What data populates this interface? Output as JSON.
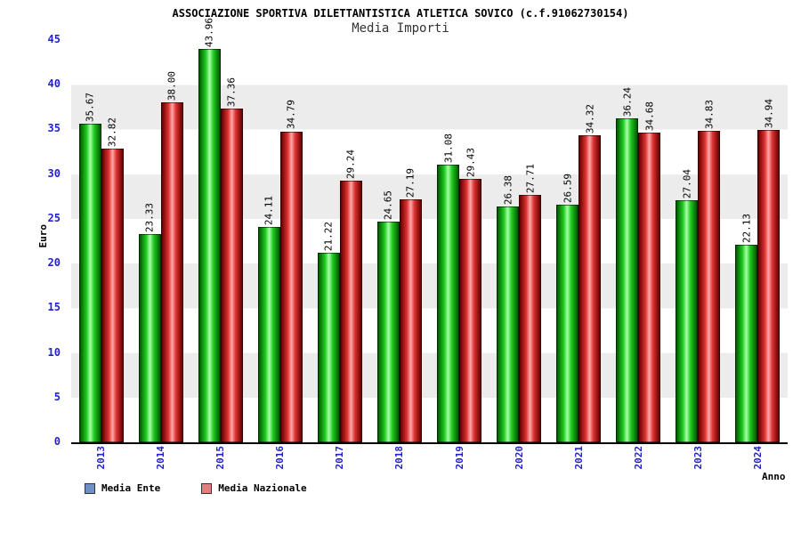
{
  "header": {
    "title": "ASSOCIAZIONE SPORTIVA DILETTANTISTICA ATLETICA SOVICO (c.f.91062730154)",
    "subtitle": "Media Importi"
  },
  "colors": {
    "axis_text": "#2222cc",
    "band_gray": "#ececec",
    "background": "#ffffff"
  },
  "chart_data": {
    "type": "bar",
    "title": "ASSOCIAZIONE SPORTIVA DILETTANTISTICA ATLETICA SOVICO (c.f.91062730154)",
    "subtitle": "Media Importi",
    "xlabel": "Anno",
    "ylabel": "Euro",
    "ylim": [
      0,
      45
    ],
    "ytick_step": 5,
    "yticks": [
      "0",
      "5",
      "10",
      "15",
      "20",
      "25",
      "30",
      "35",
      "40",
      "45"
    ],
    "grid": "alternating-bands",
    "legend_position": "bottom-left",
    "categories": [
      "2013",
      "2014",
      "2015",
      "2016",
      "2017",
      "2018",
      "2019",
      "2020",
      "2021",
      "2022",
      "2023",
      "2024"
    ],
    "series": [
      {
        "name": "Media Ente",
        "legend_swatch": "#6f8fc9",
        "gradient": [
          "#005a00",
          "#22cc22",
          "#aaffaa"
        ],
        "values": [
          35.67,
          23.33,
          43.96,
          24.11,
          21.22,
          24.65,
          31.08,
          26.38,
          26.59,
          36.24,
          27.04,
          22.13
        ],
        "labels": [
          "35.67",
          "23.33",
          "43.96",
          "24.11",
          "21.22",
          "24.65",
          "31.08",
          "26.38",
          "26.59",
          "36.24",
          "27.04",
          "22.13"
        ]
      },
      {
        "name": "Media Nazionale",
        "legend_swatch": "#df7f7f",
        "gradient": [
          "#660000",
          "#dd3333",
          "#ffaaaa"
        ],
        "values": [
          32.82,
          38.0,
          37.36,
          34.79,
          29.24,
          27.19,
          29.43,
          27.71,
          34.32,
          34.68,
          34.83,
          34.94
        ],
        "labels": [
          "32.82",
          "38.00",
          "37.36",
          "34.79",
          "29.24",
          "27.19",
          "29.43",
          "27.71",
          "34.32",
          "34.68",
          "34.83",
          "34.94"
        ]
      }
    ]
  }
}
